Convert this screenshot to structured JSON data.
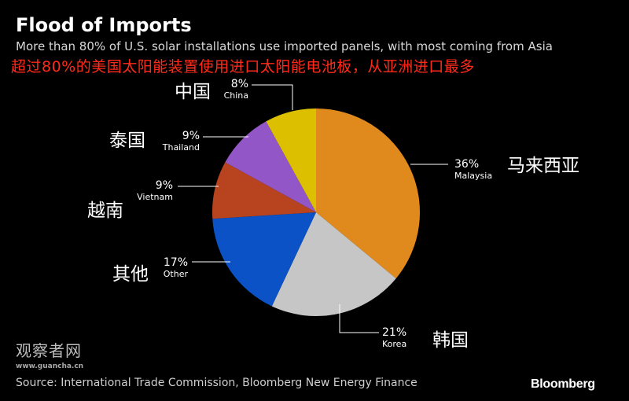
{
  "header": {
    "title": "Flood of Imports",
    "subtitle": "More than 80% of U.S. solar installations use imported panels, with most coming from Asia",
    "subtitle_cn": "超过80%的美国太阳能装置使用进口太阳能电池板，从亚洲进口最多"
  },
  "footer": {
    "source": "Source: International Trade Commission, Bloomberg New Energy Finance",
    "brand": "Bloomberg"
  },
  "watermark": {
    "cn": "观察者网",
    "url": "www.guancha.cn"
  },
  "chart_data": {
    "type": "pie",
    "title": "Flood of Imports",
    "start_angle_deg": 0,
    "direction": "clockwise",
    "slices": [
      {
        "label": "Malaysia",
        "label_cn": "马来西亚",
        "pct_label": "36%",
        "value": 36,
        "color": "#e08a1e"
      },
      {
        "label": "Korea",
        "label_cn": "韩国",
        "pct_label": "21%",
        "value": 21,
        "color": "#c6c6c6"
      },
      {
        "label": "Other",
        "label_cn": "其他",
        "pct_label": "17%",
        "value": 17,
        "color": "#0a52c6"
      },
      {
        "label": "Vietnam",
        "label_cn": "越南",
        "pct_label": "9%",
        "value": 9,
        "color": "#b8431f"
      },
      {
        "label": "Thailand",
        "label_cn": "泰国",
        "pct_label": "9%",
        "value": 9,
        "color": "#9356c6"
      },
      {
        "label": "China",
        "label_cn": "中国",
        "pct_label": "8%",
        "value": 8,
        "color": "#dcc000"
      }
    ]
  }
}
